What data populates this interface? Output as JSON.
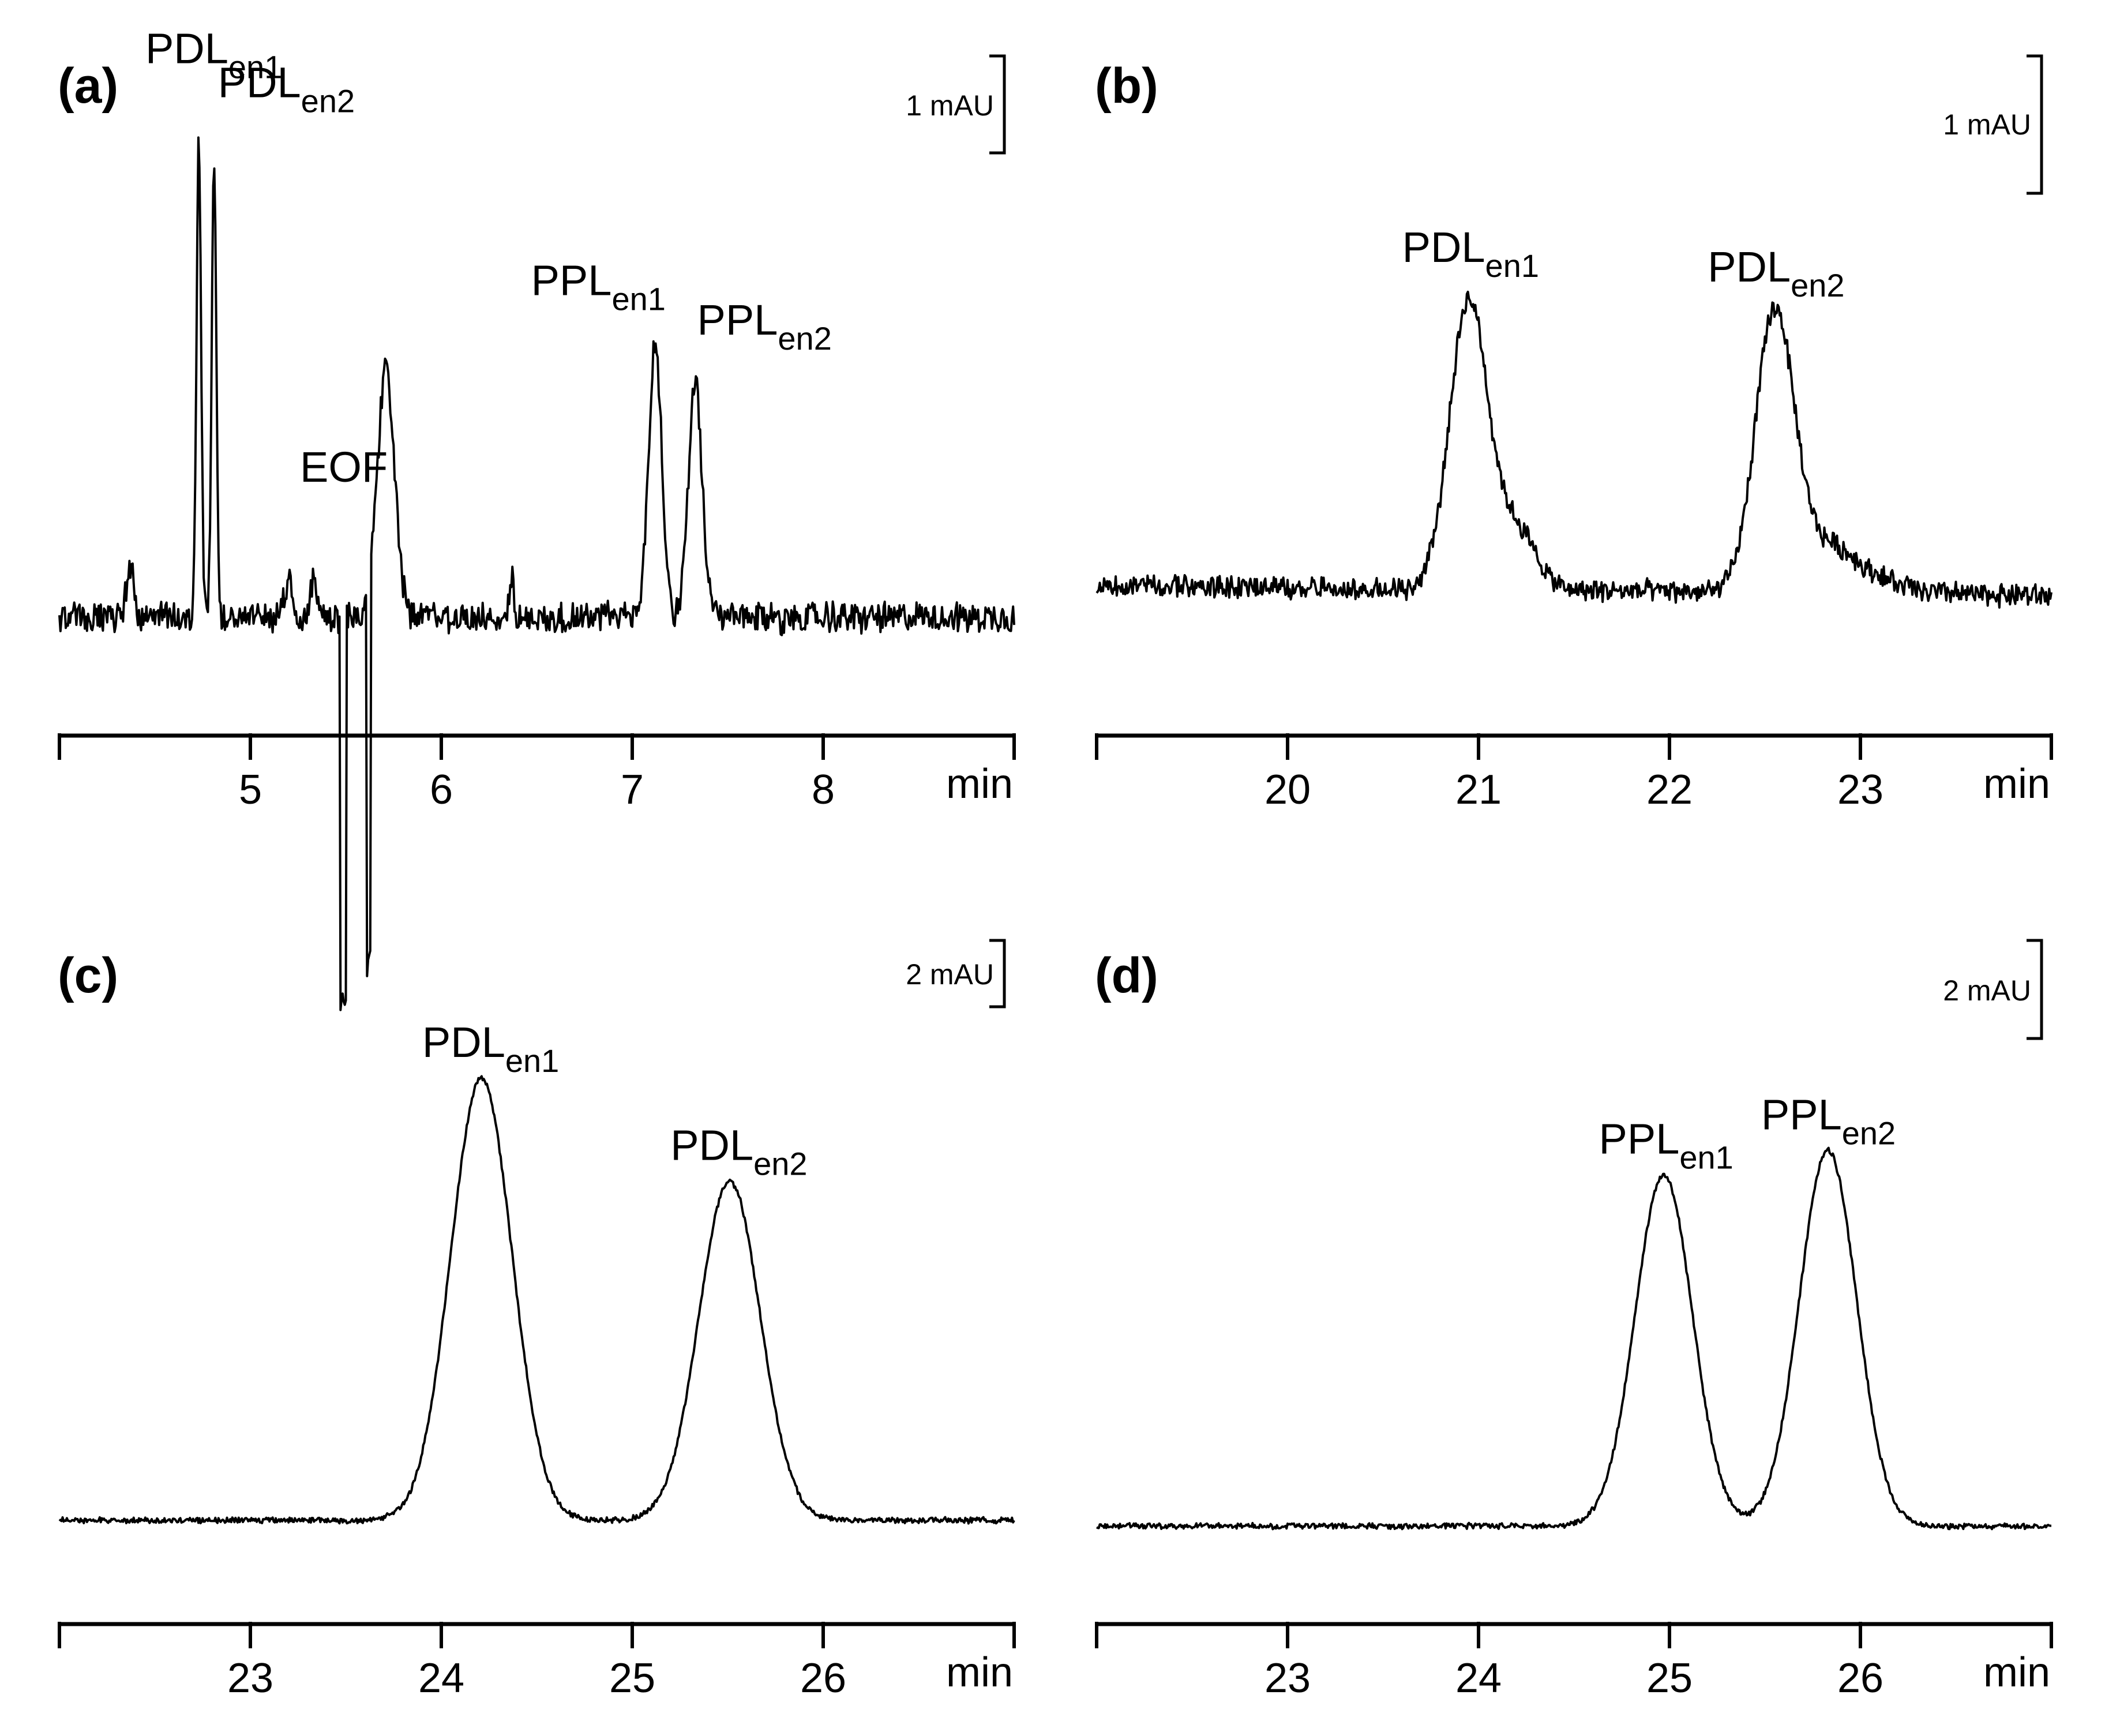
{
  "chart_data": [
    {
      "panel": "(a)",
      "type": "line",
      "xlabel": "min",
      "xlim": [
        4.0,
        9.0
      ],
      "xticks": [
        5,
        6,
        7,
        8
      ],
      "scale_bar": "1 mAU",
      "trace_extent": [
        4.0,
        9.0
      ],
      "baseline": {
        "start": 0.0,
        "end": 0.0
      },
      "peaks": [
        {
          "x": 4.37,
          "height": 0.45,
          "width": 0.02
        },
        {
          "x": 4.73,
          "height": 4.2,
          "width": 0.012
        },
        {
          "x": 4.81,
          "height": 4.1,
          "width": 0.012
        },
        {
          "x": 5.2,
          "height": 0.3,
          "width": 0.02
        },
        {
          "x": 5.33,
          "height": 0.35,
          "width": 0.02
        },
        {
          "x": 5.71,
          "height": 2.2,
          "width": 0.045
        },
        {
          "x": 6.37,
          "height": 0.35,
          "width": 0.01
        },
        {
          "x": 7.12,
          "height": 2.4,
          "width": 0.035
        },
        {
          "x": 7.33,
          "height": 2.1,
          "width": 0.035
        }
      ],
      "dips": [
        {
          "from": 5.47,
          "to": 5.5,
          "depth": 3.4
        },
        {
          "from": 5.61,
          "to": 5.63,
          "depth": 3.4
        }
      ],
      "noise": 0.12,
      "labels": [
        {
          "text": "PDL",
          "sub": "en1",
          "x": 4.45,
          "y": 4.9
        },
        {
          "text": "PDL",
          "sub": "en2",
          "x": 4.83,
          "y": 4.6
        },
        {
          "text": "EOF",
          "sub": "",
          "x": 5.26,
          "y": 1.2
        },
        {
          "text": "PPL",
          "sub": "en1",
          "x": 6.47,
          "y": 2.85
        },
        {
          "text": "PPL",
          "sub": "en2",
          "x": 7.34,
          "y": 2.5
        }
      ]
    },
    {
      "panel": "(b)",
      "type": "line",
      "xlabel": "min",
      "xlim": [
        19.0,
        24.0
      ],
      "xticks": [
        20,
        21,
        22,
        23
      ],
      "scale_bar": "1 mAU",
      "trace_extent": [
        19.0,
        24.0
      ],
      "baseline": {
        "start": 0.0,
        "end": -0.1
      },
      "peaks": [
        {
          "x": 20.95,
          "height": 2.95,
          "width": 0.1
        },
        {
          "x": 21.2,
          "height": 0.6,
          "width": 0.1
        },
        {
          "x": 22.55,
          "height": 2.8,
          "width": 0.1
        },
        {
          "x": 22.8,
          "height": 0.4,
          "width": 0.15
        },
        {
          "x": 23.0,
          "height": 0.15,
          "width": 0.2
        },
        {
          "x": 18.8,
          "height": 0.0,
          "width": 0.1
        }
      ],
      "dips": [],
      "noise": 0.1,
      "labels": [
        {
          "text": "PDL",
          "sub": "en1",
          "x": 20.6,
          "y": 3.3
        },
        {
          "text": "PDL",
          "sub": "en2",
          "x": 22.2,
          "y": 3.1
        }
      ]
    },
    {
      "panel": "(c)",
      "type": "line",
      "xlabel": "min",
      "xlim": [
        22.0,
        27.0
      ],
      "xticks": [
        23,
        24,
        25,
        26
      ],
      "scale_bar": "2 mAU",
      "trace_extent": [
        22.0,
        27.0
      ],
      "baseline": {
        "start": 0.0,
        "end": 0.0
      },
      "peaks": [
        {
          "x": 24.21,
          "height": 7.3,
          "width": 0.16
        },
        {
          "x": 25.51,
          "height": 5.6,
          "width": 0.16
        }
      ],
      "dips": [],
      "noise": 0.04,
      "labels": [
        {
          "text": "PDL",
          "sub": "en1",
          "x": 23.9,
          "y": 7.65
        },
        {
          "text": "PDL",
          "sub": "en2",
          "x": 25.2,
          "y": 5.95
        }
      ]
    },
    {
      "panel": "(d)",
      "type": "line",
      "xlabel": "min",
      "xlim": [
        22.0,
        27.0
      ],
      "xticks": [
        23,
        24,
        25,
        26
      ],
      "scale_bar": "2 mAU",
      "trace_extent": [
        22.0,
        27.0
      ],
      "baseline": {
        "start": 0.0,
        "end": 0.0
      },
      "peaks": [
        {
          "x": 24.97,
          "height": 5.8,
          "width": 0.15
        },
        {
          "x": 25.83,
          "height": 6.2,
          "width": 0.15
        }
      ],
      "dips": [],
      "noise": 0.04,
      "labels": [
        {
          "text": "PPL",
          "sub": "en1",
          "x": 24.63,
          "y": 6.15
        },
        {
          "text": "PPL",
          "sub": "en2",
          "x": 25.48,
          "y": 6.55
        }
      ]
    }
  ]
}
